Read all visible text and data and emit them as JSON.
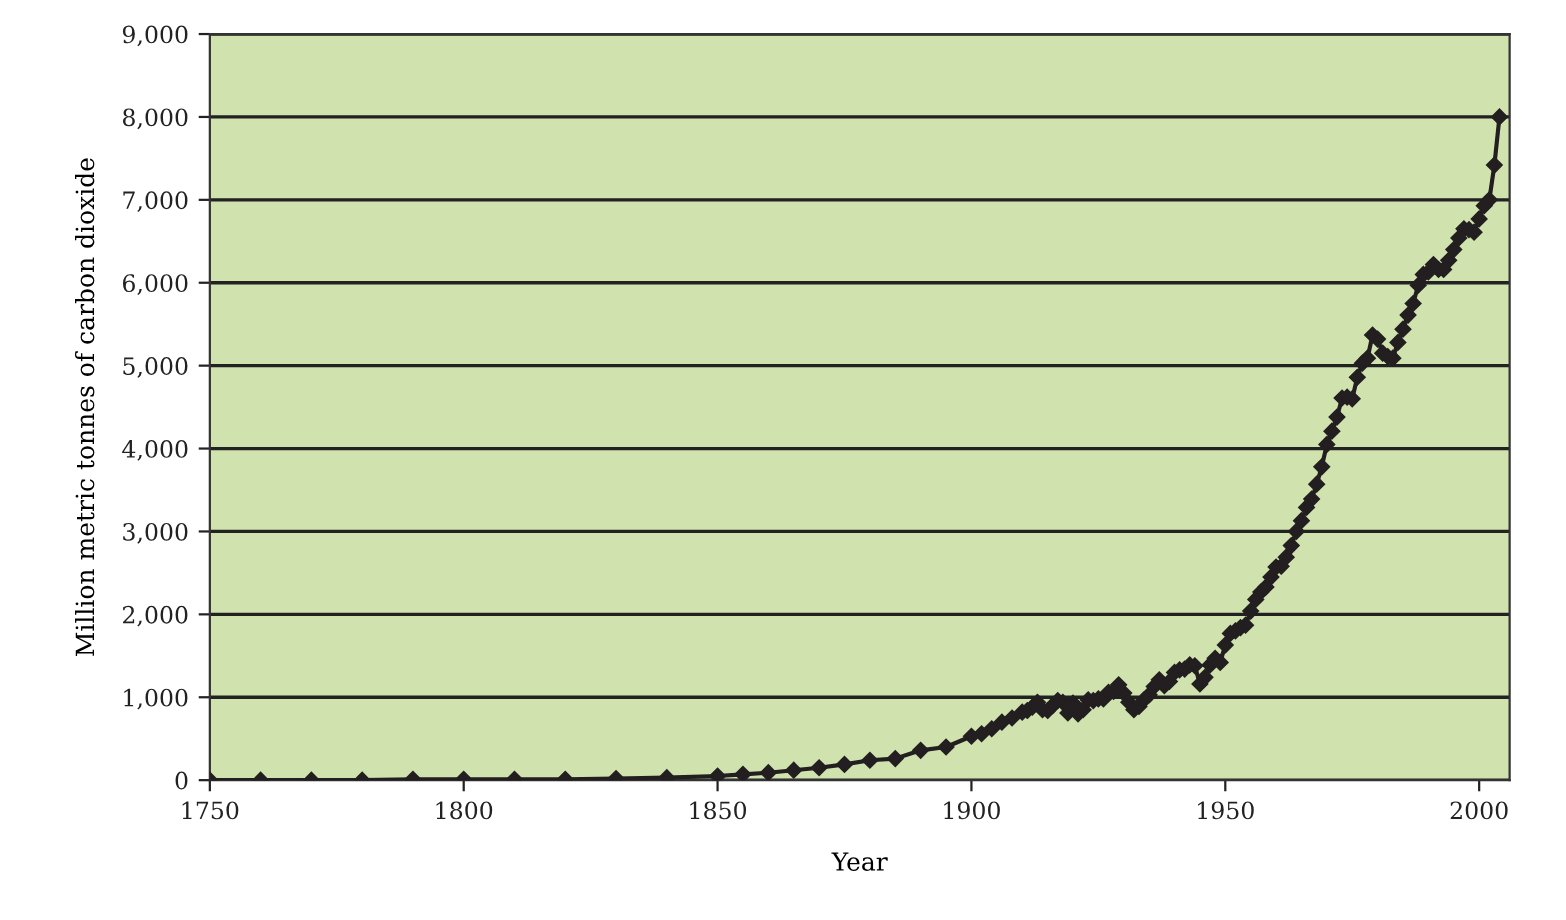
{
  "chart_data": {
    "type": "line",
    "xlabel": "Year",
    "ylabel": "Million metric tonnes of carbon dioxide",
    "xlim": [
      1750,
      2006
    ],
    "xticks": [
      1750,
      1800,
      1850,
      1900,
      1950,
      {
        "value": 2000,
        "label": "2000"
      }
    ],
    "ylim": [
      0,
      9000
    ],
    "yticks": [
      {
        "value": 0,
        "label": "0"
      },
      {
        "value": 1000,
        "label": "1,000"
      },
      {
        "value": 2000,
        "label": "2,000"
      },
      {
        "value": 3000,
        "label": "3,000"
      },
      {
        "value": 4000,
        "label": "4,000"
      },
      {
        "value": 5000,
        "label": "5,000"
      },
      {
        "value": 6000,
        "label": "6,000"
      },
      {
        "value": 7000,
        "label": "7,000"
      },
      {
        "value": 8000,
        "label": "8,000"
      },
      {
        "value": 9000,
        "label": "9,000"
      }
    ],
    "grid": "y",
    "legend": false,
    "marker": "diamond",
    "line_style": "solid",
    "x": [
      1750,
      1760,
      1770,
      1780,
      1790,
      1800,
      1810,
      1820,
      1830,
      1840,
      1850,
      1855,
      1860,
      1865,
      1870,
      1875,
      1880,
      1885,
      1890,
      1895,
      1900,
      1902,
      1904,
      1906,
      1908,
      1910,
      1911,
      1912,
      1913,
      1914,
      1915,
      1916,
      1917,
      1918,
      1919,
      1920,
      1921,
      1922,
      1923,
      1924,
      1925,
      1926,
      1927,
      1928,
      1929,
      1930,
      1931,
      1932,
      1933,
      1934,
      1935,
      1936,
      1937,
      1938,
      1939,
      1940,
      1941,
      1942,
      1943,
      1944,
      1945,
      1946,
      1947,
      1948,
      1949,
      1950,
      1951,
      1952,
      1953,
      1954,
      1955,
      1956,
      1957,
      1958,
      1959,
      1960,
      1961,
      1962,
      1963,
      1964,
      1965,
      1966,
      1967,
      1968,
      1969,
      1970,
      1971,
      1972,
      1973,
      1974,
      1975,
      1976,
      1977,
      1978,
      1979,
      1980,
      1981,
      1982,
      1983,
      1984,
      1985,
      1986,
      1987,
      1988,
      1989,
      1990,
      1991,
      1992,
      1993,
      1994,
      1995,
      1996,
      1997,
      1998,
      1999,
      2000,
      2001,
      2002,
      2003,
      2004
    ],
    "series": [
      {
        "color": "#231f20",
        "values": [
          0,
          0,
          0,
          0,
          10,
          10,
          10,
          10,
          20,
          30,
          50,
          70,
          90,
          120,
          150,
          190,
          240,
          260,
          360,
          400,
          530,
          560,
          620,
          700,
          750,
          820,
          840,
          880,
          940,
          850,
          840,
          900,
          960,
          940,
          810,
          930,
          800,
          850,
          970,
          960,
          980,
          980,
          1060,
          1070,
          1150,
          1050,
          940,
          850,
          890,
          970,
          1030,
          1130,
          1210,
          1140,
          1190,
          1300,
          1330,
          1340,
          1390,
          1380,
          1160,
          1240,
          1390,
          1470,
          1420,
          1630,
          1770,
          1800,
          1840,
          1870,
          2040,
          2180,
          2270,
          2330,
          2450,
          2570,
          2580,
          2690,
          2830,
          3000,
          3130,
          3290,
          3390,
          3570,
          3780,
          4050,
          4210,
          4380,
          4610,
          4620,
          4600,
          4860,
          5030,
          5090,
          5370,
          5320,
          5150,
          5110,
          5090,
          5280,
          5440,
          5610,
          5750,
          5970,
          6100,
          6130,
          6220,
          6160,
          6160,
          6270,
          6400,
          6540,
          6650,
          6640,
          6610,
          6770,
          6930,
          7000,
          7420,
          8000
        ]
      }
    ]
  }
}
